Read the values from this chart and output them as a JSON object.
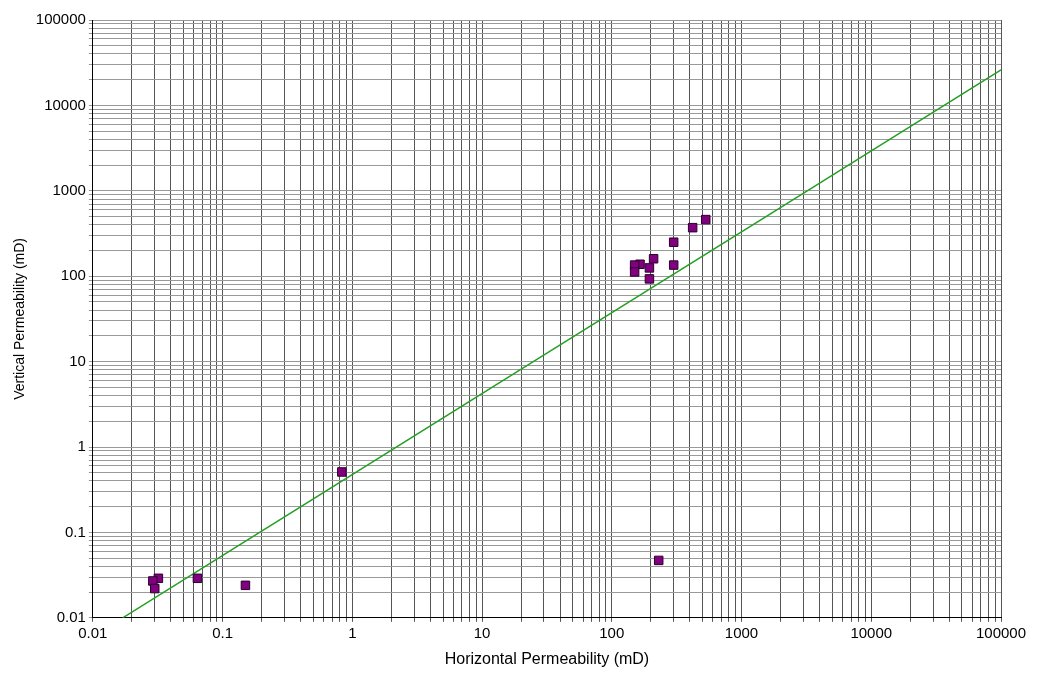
{
  "chart_data": {
    "type": "scatter",
    "xlabel": "Horizontal Permeability (mD)",
    "ylabel": "Vertical Permeability (mD)",
    "log": "xy",
    "grid": true,
    "legend": false,
    "marker": "square",
    "xlim": [
      0.01,
      100000
    ],
    "ylim": [
      0.01,
      100000
    ],
    "xticks": [
      0.01,
      {
        "value": 0.02,
        "label": null
      },
      {
        "value": 0.03,
        "label": null
      },
      {
        "value": 0.04,
        "label": null
      },
      {
        "value": 0.05,
        "label": null
      },
      {
        "value": 0.06,
        "label": null
      },
      {
        "value": 0.07,
        "label": null
      },
      {
        "value": 0.08,
        "label": null
      },
      {
        "value": 0.09,
        "label": null
      },
      0.1,
      {
        "value": 0.2,
        "label": null
      },
      {
        "value": 0.3,
        "label": null
      },
      {
        "value": 0.4,
        "label": null
      },
      {
        "value": 0.5,
        "label": null
      },
      {
        "value": 0.6,
        "label": null
      },
      {
        "value": 0.7,
        "label": null
      },
      {
        "value": 0.8,
        "label": null
      },
      {
        "value": 0.9,
        "label": null
      },
      1,
      {
        "value": 2,
        "label": null
      },
      {
        "value": 3,
        "label": null
      },
      {
        "value": 4,
        "label": null
      },
      {
        "value": 5,
        "label": null
      },
      {
        "value": 6,
        "label": null
      },
      {
        "value": 7,
        "label": null
      },
      {
        "value": 8,
        "label": null
      },
      {
        "value": 9,
        "label": null
      },
      10,
      {
        "value": 20,
        "label": null
      },
      {
        "value": 30,
        "label": null
      },
      {
        "value": 40,
        "label": null
      },
      {
        "value": 50,
        "label": null
      },
      {
        "value": 60,
        "label": null
      },
      {
        "value": 70,
        "label": null
      },
      {
        "value": 80,
        "label": null
      },
      {
        "value": 90,
        "label": null
      },
      100,
      {
        "value": 200,
        "label": null
      },
      {
        "value": 300,
        "label": null
      },
      {
        "value": 400,
        "label": null
      },
      {
        "value": 500,
        "label": null
      },
      {
        "value": 600,
        "label": null
      },
      {
        "value": 700,
        "label": null
      },
      {
        "value": 800,
        "label": null
      },
      {
        "value": 900,
        "label": null
      },
      1000,
      {
        "value": 2000,
        "label": null
      },
      {
        "value": 3000,
        "label": null
      },
      {
        "value": 4000,
        "label": null
      },
      {
        "value": 5000,
        "label": null
      },
      {
        "value": 6000,
        "label": null
      },
      {
        "value": 7000,
        "label": null
      },
      {
        "value": 8000,
        "label": null
      },
      {
        "value": 9000,
        "label": null
      },
      10000,
      {
        "value": 20000,
        "label": null
      },
      {
        "value": 30000,
        "label": null
      },
      {
        "value": 40000,
        "label": null
      },
      {
        "value": 50000,
        "label": null
      },
      {
        "value": 60000,
        "label": null
      },
      {
        "value": 70000,
        "label": null
      },
      {
        "value": 80000,
        "label": null
      },
      {
        "value": 90000,
        "label": null
      },
      100000
    ],
    "yticks": [
      0.01,
      {
        "value": 0.02,
        "label": null
      },
      {
        "value": 0.03,
        "label": null
      },
      {
        "value": 0.04,
        "label": null
      },
      {
        "value": 0.05,
        "label": null
      },
      {
        "value": 0.06,
        "label": null
      },
      {
        "value": 0.07,
        "label": null
      },
      {
        "value": 0.08,
        "label": null
      },
      {
        "value": 0.09,
        "label": null
      },
      0.1,
      {
        "value": 0.2,
        "label": null
      },
      {
        "value": 0.3,
        "label": null
      },
      {
        "value": 0.4,
        "label": null
      },
      {
        "value": 0.5,
        "label": null
      },
      {
        "value": 0.6,
        "label": null
      },
      {
        "value": 0.7,
        "label": null
      },
      {
        "value": 0.8,
        "label": null
      },
      {
        "value": 0.9,
        "label": null
      },
      1,
      {
        "value": 2,
        "label": null
      },
      {
        "value": 3,
        "label": null
      },
      {
        "value": 4,
        "label": null
      },
      {
        "value": 5,
        "label": null
      },
      {
        "value": 6,
        "label": null
      },
      {
        "value": 7,
        "label": null
      },
      {
        "value": 8,
        "label": null
      },
      {
        "value": 9,
        "label": null
      },
      10,
      {
        "value": 20,
        "label": null
      },
      {
        "value": 30,
        "label": null
      },
      {
        "value": 40,
        "label": null
      },
      {
        "value": 50,
        "label": null
      },
      {
        "value": 60,
        "label": null
      },
      {
        "value": 70,
        "label": null
      },
      {
        "value": 80,
        "label": null
      },
      {
        "value": 90,
        "label": null
      },
      100,
      {
        "value": 200,
        "label": null
      },
      {
        "value": 300,
        "label": null
      },
      {
        "value": 400,
        "label": null
      },
      {
        "value": 500,
        "label": null
      },
      {
        "value": 600,
        "label": null
      },
      {
        "value": 700,
        "label": null
      },
      {
        "value": 800,
        "label": null
      },
      {
        "value": 900,
        "label": null
      },
      1000,
      {
        "value": 2000,
        "label": null
      },
      {
        "value": 3000,
        "label": null
      },
      {
        "value": 4000,
        "label": null
      },
      {
        "value": 5000,
        "label": null
      },
      {
        "value": 6000,
        "label": null
      },
      {
        "value": 7000,
        "label": null
      },
      {
        "value": 8000,
        "label": null
      },
      {
        "value": 9000,
        "label": null
      },
      10000,
      {
        "value": 20000,
        "label": null
      },
      {
        "value": 30000,
        "label": null
      },
      {
        "value": 40000,
        "label": null
      },
      {
        "value": 50000,
        "label": null
      },
      {
        "value": 60000,
        "label": null
      },
      {
        "value": 70000,
        "label": null
      },
      {
        "value": 80000,
        "label": null
      },
      {
        "value": 90000,
        "label": null
      },
      100000
    ],
    "series": [
      {
        "color": "#800080",
        "x": [
          530,
          420,
          300,
          300,
          210,
          195,
          195,
          165,
          150,
          150,
          0.032,
          0.029,
          0.03,
          0.064,
          0.15,
          0.83,
          230
        ],
        "values": [
          460,
          370,
          250,
          135,
          160,
          125,
          93,
          138,
          135,
          112,
          0.029,
          0.027,
          0.022,
          0.029,
          0.024,
          0.51,
          0.047
        ]
      },
      {
        "type": "line",
        "color": "#22a022",
        "marker": "none",
        "x": [
          0.017,
          100000
        ],
        "values": [
          0.01,
          26000
        ]
      }
    ]
  }
}
